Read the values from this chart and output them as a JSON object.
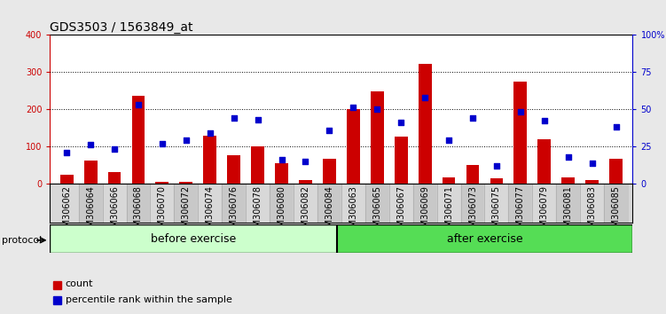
{
  "title": "GDS3503 / 1563849_at",
  "categories": [
    "GSM306062",
    "GSM306064",
    "GSM306066",
    "GSM306068",
    "GSM306070",
    "GSM306072",
    "GSM306074",
    "GSM306076",
    "GSM306078",
    "GSM306080",
    "GSM306082",
    "GSM306084",
    "GSM306063",
    "GSM306065",
    "GSM306067",
    "GSM306069",
    "GSM306071",
    "GSM306073",
    "GSM306075",
    "GSM306077",
    "GSM306079",
    "GSM306081",
    "GSM306083",
    "GSM306085"
  ],
  "counts": [
    25,
    62,
    30,
    235,
    5,
    5,
    128,
    77,
    100,
    55,
    10,
    68,
    200,
    248,
    127,
    322,
    18,
    50,
    15,
    273,
    118,
    18,
    10,
    68
  ],
  "percentiles_pct": [
    21,
    26,
    23,
    53,
    27,
    29,
    34,
    44,
    43,
    16,
    15,
    36,
    51,
    50,
    41,
    58,
    29,
    44,
    12,
    48,
    42,
    18,
    14,
    38
  ],
  "bar_color": "#cc0000",
  "dot_color": "#0000cc",
  "left_ylim": [
    0,
    400
  ],
  "right_ylim": [
    0,
    100
  ],
  "left_yticks": [
    0,
    100,
    200,
    300,
    400
  ],
  "right_yticks": [
    0,
    25,
    50,
    75,
    100
  ],
  "right_yticklabels": [
    "0",
    "25",
    "50",
    "75",
    "100%"
  ],
  "left_ycolor": "#cc0000",
  "right_ycolor": "#0000cc",
  "before_exercise_count": 12,
  "after_exercise_count": 12,
  "group_label_before": "before exercise",
  "group_label_after": "after exercise",
  "protocol_label": "protocol",
  "legend_count": "count",
  "legend_percentile": "percentile rank within the sample",
  "fig_bg_color": "#e8e8e8",
  "plot_bg": "#ffffff",
  "xticklabel_bg": "#d8d8d8",
  "before_bg": "#ccffcc",
  "after_bg": "#55dd55",
  "title_fontsize": 10,
  "tick_fontsize": 7,
  "legend_fontsize": 8,
  "group_fontsize": 9
}
